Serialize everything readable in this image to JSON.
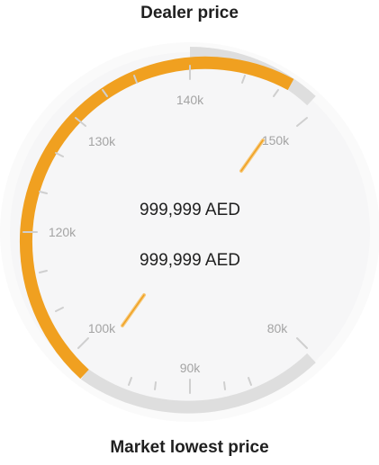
{
  "gauge": {
    "top_label": "Dealer price",
    "bottom_label": "Market lowest price",
    "dealer_price_text": "999,999 AED",
    "market_price_text": "999,999 AED",
    "ticks": [
      {
        "label": "80k",
        "value": 80000
      },
      {
        "label": "90k",
        "value": 90000
      },
      {
        "label": "100k",
        "value": 100000
      },
      {
        "label": "120k",
        "value": 120000
      },
      {
        "label": "130k",
        "value": 130000
      },
      {
        "label": "140k",
        "value": 140000
      },
      {
        "label": "150k",
        "value": 150000
      }
    ],
    "colors": {
      "track": "#dedede",
      "fill": "#f0a020",
      "face": "#f6f6f7",
      "tick": "#cfcfcf",
      "needle": "#f0a020"
    }
  }
}
